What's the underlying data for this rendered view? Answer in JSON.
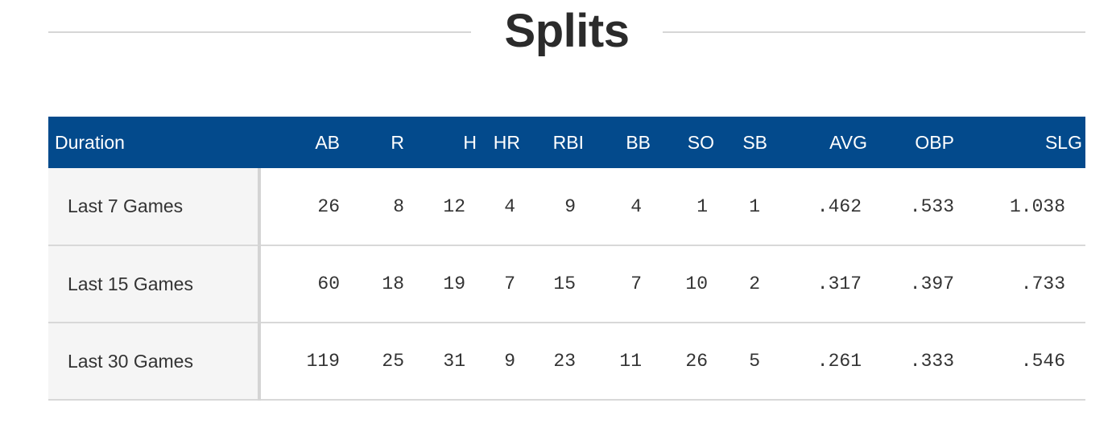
{
  "title": "Splits",
  "table": {
    "headers": [
      "Duration",
      "AB",
      "R",
      "H",
      "HR",
      "RBI",
      "BB",
      "SO",
      "SB",
      "AVG",
      "OBP",
      "SLG"
    ],
    "rows": [
      {
        "duration": "Last 7 Games",
        "AB": "26",
        "R": "8",
        "H": "12",
        "HR": "4",
        "RBI": "9",
        "BB": "4",
        "SO": "1",
        "SB": "1",
        "AVG": ".462",
        "OBP": ".533",
        "SLG": "1.038"
      },
      {
        "duration": "Last 15 Games",
        "AB": "60",
        "R": "18",
        "H": "19",
        "HR": "7",
        "RBI": "15",
        "BB": "7",
        "SO": "10",
        "SB": "2",
        "AVG": ".317",
        "OBP": ".397",
        "SLG": ".733"
      },
      {
        "duration": "Last 30 Games",
        "AB": "119",
        "R": "25",
        "H": "31",
        "HR": "9",
        "RBI": "23",
        "BB": "11",
        "SO": "26",
        "SB": "5",
        "AVG": ".261",
        "OBP": ".333",
        "SLG": ".546"
      }
    ]
  },
  "colors": {
    "header_bg": "#034a8c",
    "header_text": "#ffffff",
    "label_cell_bg": "#f5f5f5",
    "rule": "#d6d6d6",
    "text": "#333333"
  }
}
